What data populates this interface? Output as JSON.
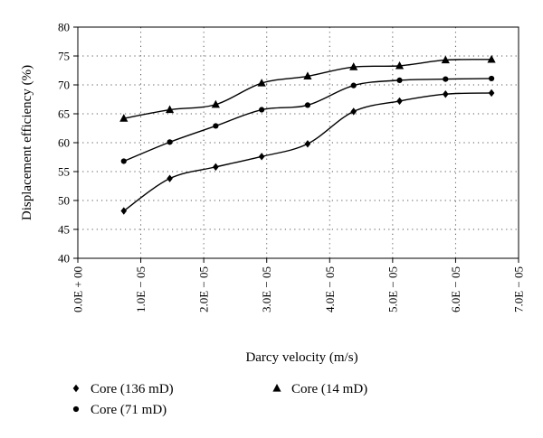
{
  "chart_data": {
    "type": "scatter",
    "title": "",
    "xlabel": "Darcy velocity (m/s)",
    "ylabel": "Displacement efficiency (%)",
    "xlim": [
      0,
      7e-05
    ],
    "ylim": [
      40,
      80
    ],
    "x_tick_values": [
      0,
      1e-05,
      2e-05,
      3e-05,
      4e-05,
      5e-05,
      6e-05,
      7e-05
    ],
    "x_tick_labels": [
      "0.0E + 00",
      "1.0E − 05",
      "2.0E − 05",
      "3.0E − 05",
      "4.0E − 05",
      "5.0E − 05",
      "6.0E − 05",
      "7.0E − 05"
    ],
    "y_tick_values": [
      40,
      45,
      50,
      55,
      60,
      65,
      70,
      75,
      80
    ],
    "y_tick_labels": [
      "40",
      "45",
      "50",
      "55",
      "60",
      "65",
      "70",
      "75",
      "80"
    ],
    "grid": true,
    "trend_lines": true,
    "legend_position": "bottom",
    "series": [
      {
        "name": "Core (136 mD)",
        "marker": "diamond",
        "x": [
          7.3e-06,
          1.46e-05,
          2.19e-05,
          2.92e-05,
          3.65e-05,
          4.38e-05,
          5.11e-05,
          5.84e-05,
          6.57e-05
        ],
        "y": [
          48.2,
          53.8,
          55.8,
          57.6,
          59.8,
          65.4,
          67.2,
          68.4,
          68.6
        ]
      },
      {
        "name": "Core (71 mD)",
        "marker": "circle",
        "x": [
          7.3e-06,
          1.46e-05,
          2.19e-05,
          2.92e-05,
          3.65e-05,
          4.38e-05,
          5.11e-05,
          5.84e-05,
          6.57e-05
        ],
        "y": [
          56.8,
          60.1,
          62.9,
          65.7,
          66.5,
          69.9,
          70.8,
          71.0,
          71.1
        ]
      },
      {
        "name": "Core (14 mD)",
        "marker": "triangle",
        "x": [
          7.3e-06,
          1.46e-05,
          2.19e-05,
          2.92e-05,
          3.65e-05,
          4.38e-05,
          5.11e-05,
          5.84e-05,
          6.57e-05
        ],
        "y": [
          64.2,
          65.7,
          66.6,
          70.3,
          71.5,
          73.1,
          73.3,
          74.3,
          74.4
        ]
      }
    ]
  }
}
